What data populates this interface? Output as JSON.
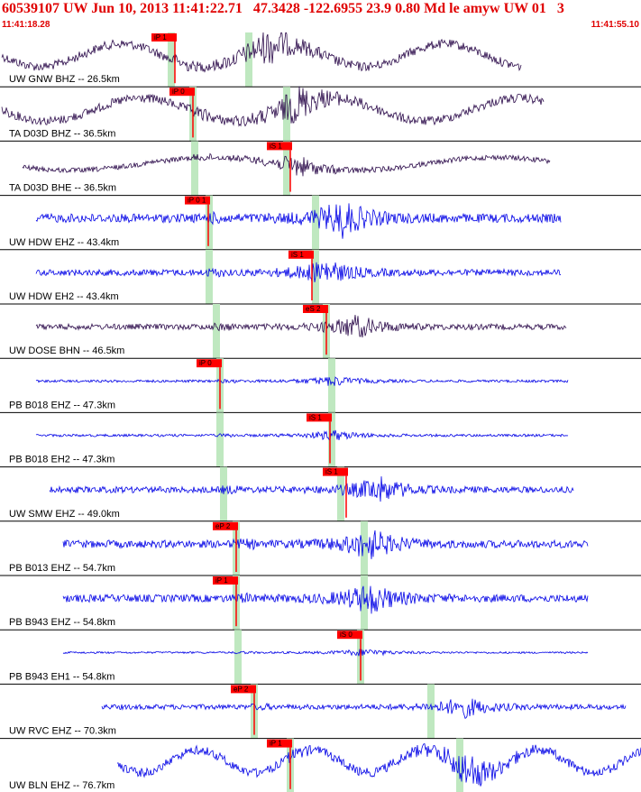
{
  "header": {
    "title": "60539107 UW Jun 10, 2013 11:41:22.71   47.3428 -122.6955 23.9 0.80 Md le amyw UW 01   3",
    "time_start": "11:41:18.28",
    "time_end": "11:41:55.10"
  },
  "colors": {
    "header_text": "#e00000",
    "trace_blue": "#0000e6",
    "trace_purple": "#2b0a4a",
    "pick_red": "#ff0000",
    "green_band": "#bfe8c0",
    "divider": "#000000"
  },
  "traces": [
    {
      "label": "UW GNW BHZ -- 26.5km",
      "color": "purple",
      "picks": [
        {
          "label": "iP 1"
        }
      ]
    },
    {
      "label": "TA D03D BHZ -- 36.5km",
      "color": "purple",
      "picks": [
        {
          "label": "iP 0"
        }
      ]
    },
    {
      "label": "TA D03D BHE -- 36.5km",
      "color": "purple",
      "picks": [
        {
          "label": "iS 1"
        }
      ]
    },
    {
      "label": "UW HDW EHZ -- 43.4km",
      "color": "blue",
      "picks": [
        {
          "label": "iP 0 1"
        }
      ]
    },
    {
      "label": "UW HDW EH2 -- 43.4km",
      "color": "blue",
      "picks": [
        {
          "label": "iS 1"
        }
      ]
    },
    {
      "label": "UW DOSE BHN -- 46.5km",
      "color": "purple",
      "picks": [
        {
          "label": "eS 2"
        }
      ]
    },
    {
      "label": "PB B018 EHZ -- 47.3km",
      "color": "blue",
      "picks": [
        {
          "label": "iP 0"
        }
      ]
    },
    {
      "label": "PB B018 EH2 -- 47.3km",
      "color": "blue",
      "picks": [
        {
          "label": "iS 1"
        }
      ]
    },
    {
      "label": "UW SMW EHZ -- 49.0km",
      "color": "blue",
      "picks": [
        {
          "label": "iS 1"
        }
      ]
    },
    {
      "label": "PB B013 EHZ -- 54.7km",
      "color": "blue",
      "picks": [
        {
          "label": "eP 2"
        }
      ]
    },
    {
      "label": "PB B943 EHZ -- 54.8km",
      "color": "blue",
      "picks": [
        {
          "label": "iP 1"
        }
      ]
    },
    {
      "label": "PB B943 EH1 -- 54.8km",
      "color": "blue",
      "picks": [
        {
          "label": "iS 0"
        }
      ]
    },
    {
      "label": "UW RVC EHZ -- 70.3km",
      "color": "blue",
      "picks": [
        {
          "label": "eP 2"
        }
      ]
    },
    {
      "label": "UW BLN EHZ -- 76.7km",
      "color": "blue",
      "picks": [
        {
          "label": "iP 1"
        }
      ]
    }
  ]
}
